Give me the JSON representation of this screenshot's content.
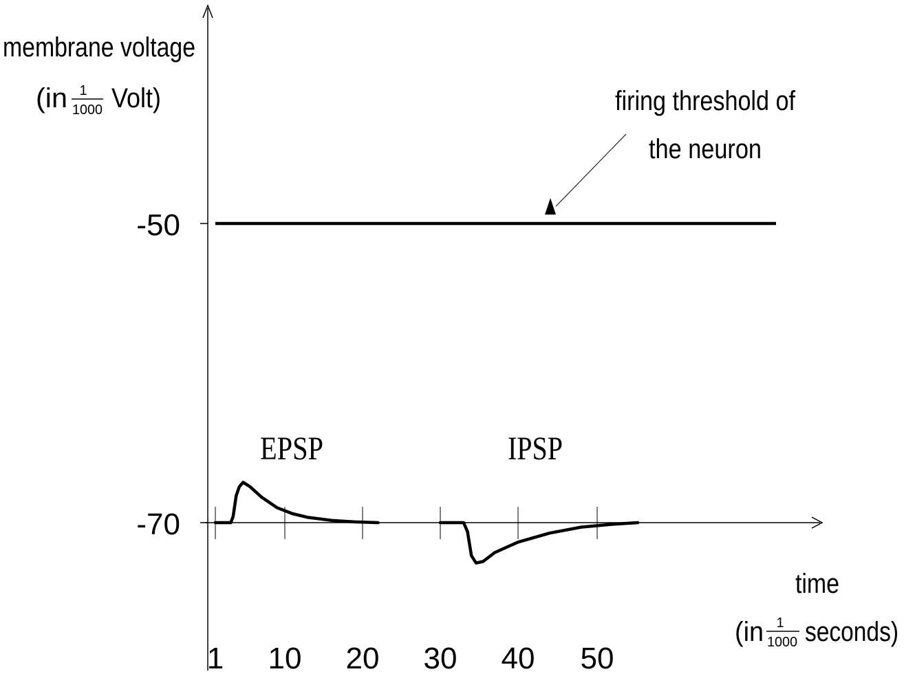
{
  "chart_data": {
    "type": "line",
    "ylabel": {
      "line1": "membrane voltage",
      "prefix": "(in",
      "frac_num": "1",
      "frac_den": "1000",
      "suffix": "Volt)"
    },
    "xlabel": {
      "line1": "time",
      "prefix": "(in",
      "frac_num": "1",
      "frac_den": "1000",
      "suffix": "seconds)"
    },
    "x_ticks": [
      "1",
      "10",
      "20",
      "30",
      "40",
      "50"
    ],
    "x_tick_values": [
      1,
      10,
      20,
      30,
      40,
      50
    ],
    "y_ticks": [
      "-50",
      "-70"
    ],
    "y_tick_values": [
      -50,
      -70
    ],
    "ylim": [
      -76,
      -36
    ],
    "xlim": [
      0,
      75
    ],
    "threshold": {
      "value": -50,
      "x_range": [
        1,
        72
      ],
      "label_line1": "firing threshold of",
      "label_line2": "the neuron"
    },
    "series": [
      {
        "name": "EPSP",
        "points": [
          [
            1,
            -70
          ],
          [
            3,
            -70
          ],
          [
            3.3,
            -69.6
          ],
          [
            3.7,
            -68.2
          ],
          [
            4.1,
            -67.6
          ],
          [
            4.6,
            -67.3
          ],
          [
            5.5,
            -67.6
          ],
          [
            7,
            -68.3
          ],
          [
            9,
            -69.0
          ],
          [
            11,
            -69.4
          ],
          [
            13,
            -69.65
          ],
          [
            16,
            -69.85
          ],
          [
            19,
            -69.95
          ],
          [
            22,
            -70
          ]
        ]
      },
      {
        "name": "IPSP",
        "points": [
          [
            30,
            -70
          ],
          [
            33,
            -70
          ],
          [
            33.5,
            -70.6
          ],
          [
            34,
            -72.2
          ],
          [
            34.6,
            -72.7
          ],
          [
            35.5,
            -72.6
          ],
          [
            37,
            -72.0
          ],
          [
            40,
            -71.3
          ],
          [
            44,
            -70.7
          ],
          [
            48,
            -70.3
          ],
          [
            52,
            -70.1
          ],
          [
            55,
            -70
          ]
        ]
      }
    ]
  }
}
